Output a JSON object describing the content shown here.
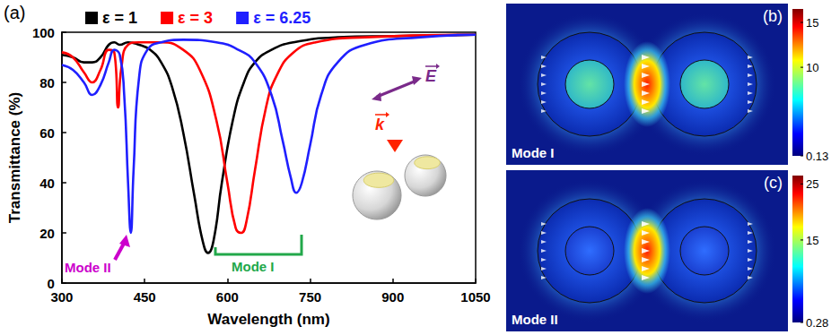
{
  "chart_data": {
    "type": "line",
    "panel": "(a)",
    "xlabel": "Wavelength (nm)",
    "ylabel": "Transmittance (%)",
    "xlim": [
      300,
      1050
    ],
    "xticks": [
      300,
      450,
      600,
      750,
      900,
      1050
    ],
    "ylim": [
      0,
      100
    ],
    "yticks": [
      0,
      20,
      40,
      60,
      80,
      100
    ],
    "grid": false,
    "legend": "top",
    "series": [
      {
        "name": "ε = 1",
        "color": "#000000",
        "x": [
          300,
          320,
          340,
          355,
          370,
          385,
          395,
          405,
          420,
          440,
          460,
          480,
          500,
          520,
          540,
          555,
          565,
          575,
          590,
          610,
          630,
          650,
          680,
          720,
          800,
          900,
          1050
        ],
        "values": [
          91,
          90,
          88,
          88,
          90,
          95,
          96,
          95,
          96,
          95,
          93,
          88,
          78,
          60,
          35,
          17,
          12,
          17,
          40,
          65,
          80,
          88,
          93,
          96,
          98,
          98.5,
          99
        ]
      },
      {
        "name": "ε = 3",
        "color": "#ff0000",
        "x": [
          300,
          320,
          340,
          355,
          370,
          385,
          395,
          402,
          408,
          420,
          440,
          480,
          520,
          550,
          580,
          600,
          615,
          625,
          635,
          650,
          670,
          690,
          720,
          760,
          850,
          1050
        ],
        "values": [
          92,
          90,
          84,
          80,
          85,
          93,
          92,
          70,
          86,
          95,
          96,
          96,
          93,
          85,
          65,
          40,
          22,
          20,
          25,
          45,
          70,
          83,
          92,
          96,
          98,
          99
        ]
      },
      {
        "name": "ε = 6.25",
        "color": "#1f1fff",
        "x": [
          300,
          320,
          340,
          355,
          370,
          385,
          395,
          405,
          413,
          420,
          425,
          430,
          440,
          455,
          480,
          520,
          580,
          620,
          650,
          680,
          700,
          715,
          725,
          735,
          750,
          770,
          800,
          850,
          950,
          1050
        ],
        "values": [
          87,
          85,
          80,
          75,
          79,
          88,
          93,
          91,
          75,
          40,
          20,
          45,
          82,
          93,
          96,
          97,
          96,
          93,
          88,
          75,
          57,
          42,
          36,
          40,
          55,
          75,
          88,
          95,
          98,
          99
        ]
      }
    ],
    "annotations": [
      {
        "text": "Mode II",
        "color": "#cc00cc"
      },
      {
        "text": "Mode I",
        "color": "#22a84a"
      }
    ],
    "inset": {
      "wave_vector": "k",
      "field": "E"
    }
  },
  "field_maps": [
    {
      "panel": "(b)",
      "label": "Mode I",
      "colorbar": {
        "range": [
          0.13,
          16.5
        ],
        "ticks": [
          15,
          10,
          0.13
        ]
      }
    },
    {
      "panel": "(c)",
      "label": "Mode II",
      "colorbar": {
        "range": [
          0.28,
          26.5
        ],
        "ticks": [
          25,
          15,
          0.28
        ]
      }
    }
  ]
}
